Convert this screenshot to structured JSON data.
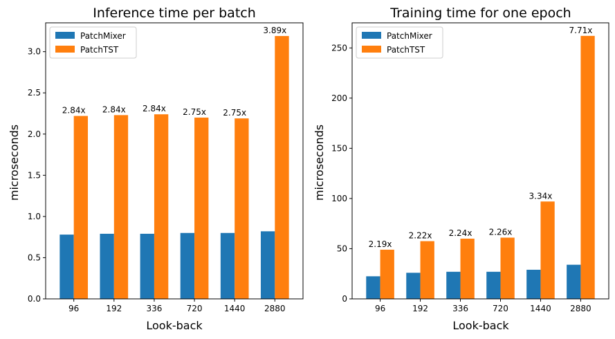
{
  "chart_data": [
    {
      "type": "bar",
      "title": "Inference time per batch",
      "xlabel": "Look-back",
      "ylabel": "microseconds",
      "categories": [
        "96",
        "192",
        "336",
        "720",
        "1440",
        "2880"
      ],
      "series": [
        {
          "name": "PatchMixer",
          "color": "#1f77b4",
          "values": [
            0.78,
            0.79,
            0.79,
            0.8,
            0.8,
            0.82
          ]
        },
        {
          "name": "PatchTST",
          "color": "#ff7f0e",
          "values": [
            2.22,
            2.23,
            2.24,
            2.2,
            2.19,
            3.19
          ]
        }
      ],
      "annotations": [
        "2.84x",
        "2.84x",
        "2.84x",
        "2.75x",
        "2.75x",
        "3.89x"
      ],
      "ylim": [
        0,
        3.35
      ],
      "yticks": [
        0.0,
        0.5,
        1.0,
        1.5,
        2.0,
        2.5,
        3.0
      ],
      "ytick_labels": [
        "0.0",
        "0.5",
        "1.0",
        "1.5",
        "2.0",
        "2.5",
        "3.0"
      ],
      "legend_position": "upper-left",
      "grid": false
    },
    {
      "type": "bar",
      "title": "Training time for one epoch",
      "xlabel": "Look-back",
      "ylabel": "microseconds",
      "categories": [
        "96",
        "192",
        "336",
        "720",
        "1440",
        "2880"
      ],
      "series": [
        {
          "name": "PatchMixer",
          "color": "#1f77b4",
          "values": [
            22.5,
            26,
            27,
            27,
            29,
            34
          ]
        },
        {
          "name": "PatchTST",
          "color": "#ff7f0e",
          "values": [
            49,
            57.5,
            60,
            61,
            97,
            262
          ]
        }
      ],
      "annotations": [
        "2.19x",
        "2.22x",
        "2.24x",
        "2.26x",
        "3.34x",
        "7.71x"
      ],
      "ylim": [
        0,
        275
      ],
      "yticks": [
        0,
        50,
        100,
        150,
        200,
        250
      ],
      "ytick_labels": [
        "0",
        "50",
        "100",
        "150",
        "200",
        "250"
      ],
      "legend_position": "upper-left",
      "grid": false
    }
  ]
}
